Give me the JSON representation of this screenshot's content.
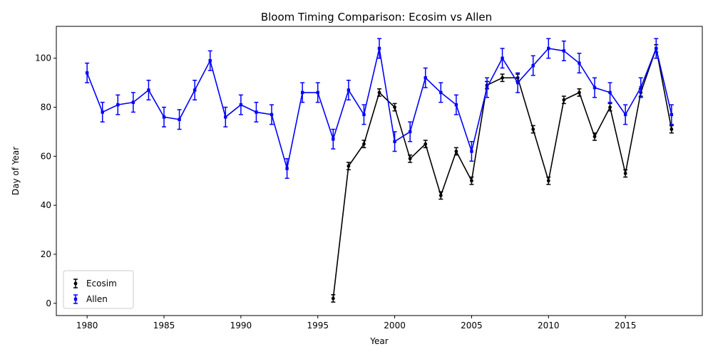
{
  "chart_data": {
    "type": "line",
    "title": "Bloom Timing Comparison: Ecosim vs Allen",
    "xlabel": "Year",
    "ylabel": "Day of Year",
    "xlim": [
      1978,
      2020
    ],
    "ylim": [
      -5,
      113
    ],
    "xticks": [
      1980,
      1985,
      1990,
      1995,
      2000,
      2005,
      2010,
      2015
    ],
    "yticks": [
      0,
      20,
      40,
      60,
      80,
      100
    ],
    "legend_position": "lower-left",
    "grid": false,
    "series": [
      {
        "name": "Ecosim",
        "color": "#000000",
        "marker": "circle",
        "error_bars": true,
        "x": [
          1996,
          1997,
          1998,
          1999,
          2000,
          2001,
          2002,
          2003,
          2004,
          2005,
          2006,
          2007,
          2008,
          2009,
          2010,
          2011,
          2012,
          2013,
          2014,
          2015,
          2016,
          2017,
          2018
        ],
        "y": [
          2,
          56,
          65,
          86,
          80,
          59,
          65,
          44,
          62,
          50,
          89,
          92,
          92,
          71,
          50,
          83,
          86,
          68,
          80,
          53,
          86,
          104,
          71
        ],
        "err": [
          1.5,
          1.5,
          1.5,
          1.5,
          1.5,
          1.5,
          1.5,
          1.5,
          1.5,
          1.5,
          1.5,
          1.5,
          1.5,
          1.5,
          1.5,
          1.5,
          1.5,
          1.5,
          1.5,
          1.5,
          1.5,
          1.5,
          1.5
        ]
      },
      {
        "name": "Allen",
        "color": "#0000ff",
        "marker": "square",
        "error_bars": true,
        "x": [
          1980,
          1981,
          1982,
          1983,
          1984,
          1985,
          1986,
          1987,
          1988,
          1989,
          1990,
          1991,
          1992,
          1993,
          1994,
          1995,
          1996,
          1997,
          1998,
          1999,
          2000,
          2001,
          2002,
          2003,
          2004,
          2005,
          2006,
          2007,
          2008,
          2009,
          2010,
          2011,
          2012,
          2013,
          2014,
          2015,
          2016,
          2017,
          2018
        ],
        "y": [
          94,
          78,
          81,
          82,
          87,
          76,
          75,
          87,
          99,
          76,
          81,
          78,
          77,
          55,
          86,
          86,
          67,
          87,
          77,
          104,
          66,
          70,
          92,
          86,
          81,
          62,
          88,
          100,
          90,
          97,
          104,
          103,
          98,
          88,
          86,
          77,
          88,
          104,
          77
        ],
        "err": [
          4,
          4,
          4,
          4,
          4,
          4,
          4,
          4,
          4,
          4,
          4,
          4,
          4,
          4,
          4,
          4,
          4,
          4,
          4,
          4,
          4,
          4,
          4,
          4,
          4,
          4,
          4,
          4,
          4,
          4,
          4,
          4,
          4,
          4,
          4,
          4,
          4,
          4,
          4
        ]
      }
    ]
  }
}
